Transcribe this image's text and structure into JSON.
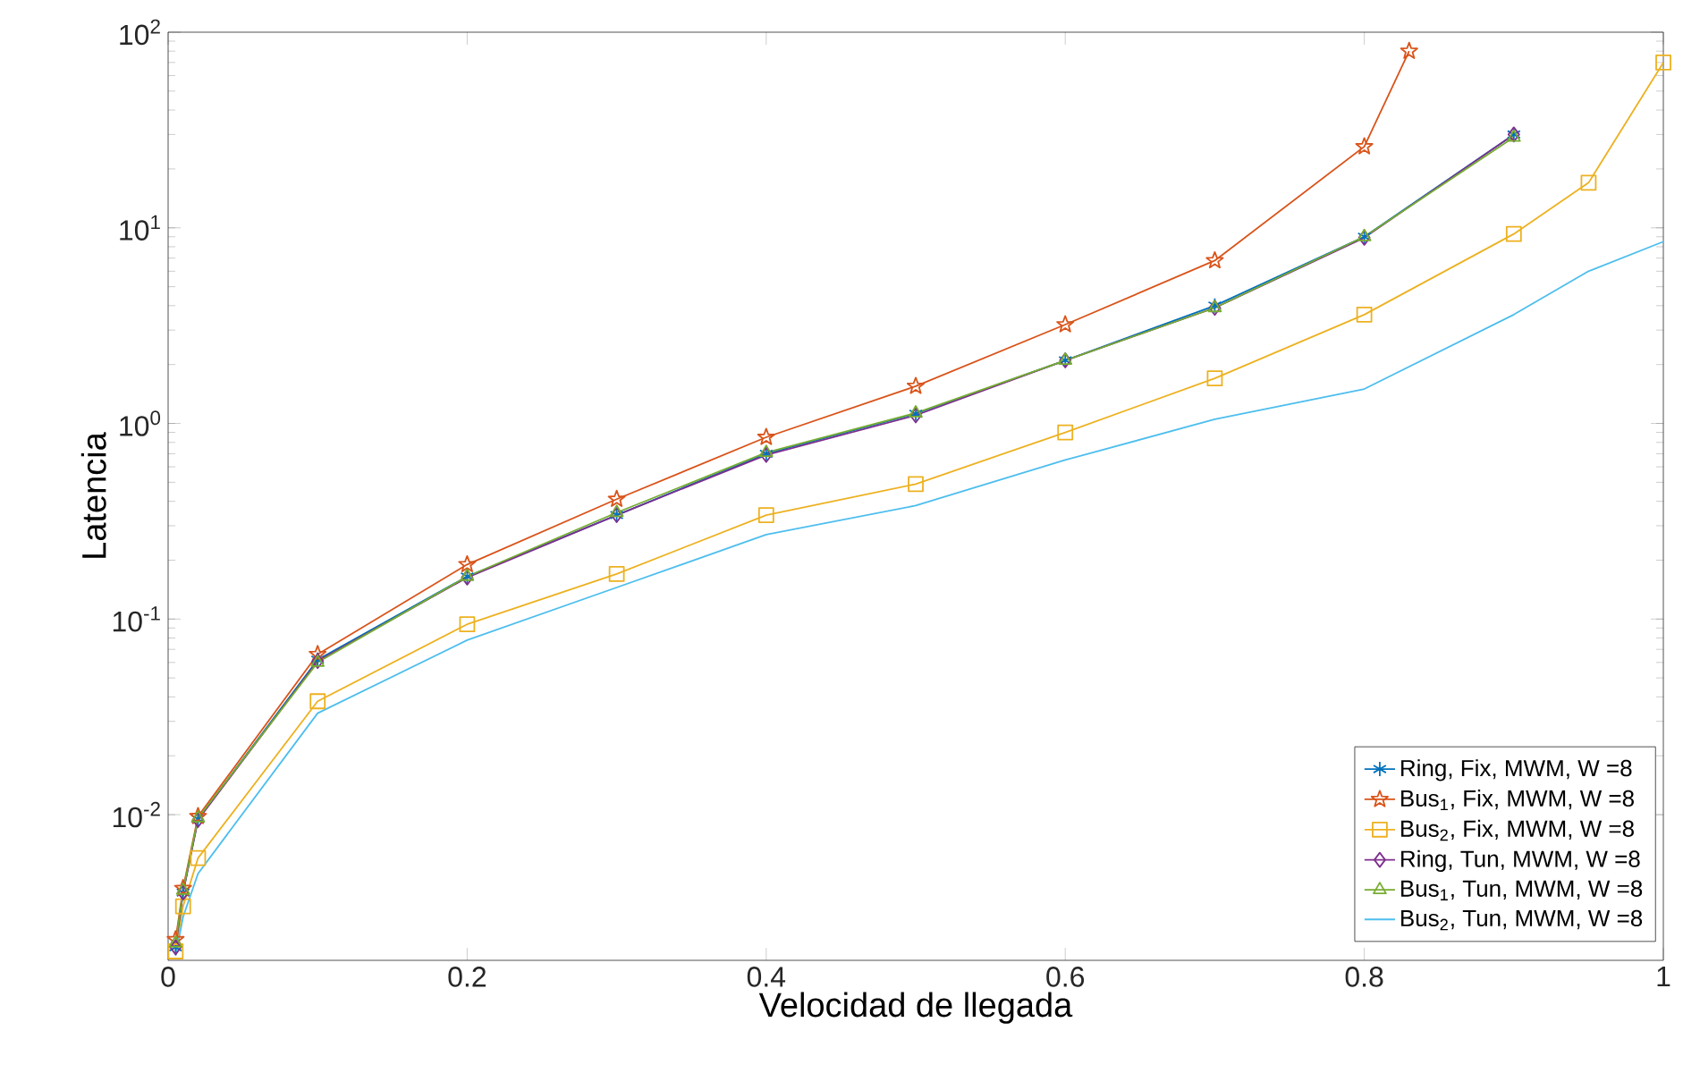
{
  "chart_data": {
    "type": "line",
    "xlabel": "Velocidad de llegada",
    "ylabel": "Latencia",
    "log": "y",
    "xlim": [
      0,
      1
    ],
    "ylim": [
      0.0018,
      100
    ],
    "xticks": [
      0,
      0.2,
      0.4,
      0.6,
      0.8,
      1
    ],
    "yticks": [
      {
        "value": 0.01,
        "label": "10$^{-2}$"
      },
      {
        "value": 0.1,
        "label": "10$^{-1}$"
      },
      {
        "value": 1,
        "label": "10$^{0}$"
      },
      {
        "value": 10,
        "label": "10$^{1}$"
      },
      {
        "value": 100,
        "label": "10$^{2}$"
      }
    ],
    "x": [
      0.005,
      0.01,
      0.02,
      0.1,
      0.2,
      0.3,
      0.4,
      0.5,
      0.6,
      0.7,
      0.8,
      0.9
    ],
    "legend": "bottom right",
    "grid": false,
    "series": [
      {
        "name": "Ring, Fix, MWM, W =8",
        "color": "#0072bd",
        "marker": "cross",
        "values": [
          0.0021,
          0.004,
          0.0095,
          0.062,
          0.165,
          0.34,
          0.7,
          1.12,
          2.1,
          4.0,
          9.0,
          30
        ]
      },
      {
        "name": "Bus$_{1}$, Fix, MWM, W =8",
        "color": "#d95319",
        "marker": "star",
        "x": [
          0.005,
          0.01,
          0.02,
          0.1,
          0.2,
          0.3,
          0.4,
          0.5,
          0.6,
          0.7,
          0.8,
          0.83
        ],
        "values": [
          0.0023,
          0.0042,
          0.0098,
          0.066,
          0.19,
          0.41,
          0.85,
          1.55,
          3.2,
          6.8,
          26,
          80
        ]
      },
      {
        "name": "Bus$_{2}$, Fix, MWM, W =8",
        "color": "#edb120",
        "marker": "square",
        "x": [
          0.005,
          0.01,
          0.02,
          0.1,
          0.2,
          0.3,
          0.4,
          0.5,
          0.6,
          0.7,
          0.8,
          0.9,
          0.95,
          1.0
        ],
        "values": [
          0.002,
          0.0034,
          0.006,
          0.038,
          0.094,
          0.17,
          0.34,
          0.49,
          0.9,
          1.7,
          3.6,
          9.3,
          17,
          70
        ]
      },
      {
        "name": "Ring, Tun, MWM, W =8",
        "color": "#7e2f8e",
        "marker": "diamond",
        "values": [
          0.0021,
          0.004,
          0.0094,
          0.061,
          0.163,
          0.34,
          0.69,
          1.1,
          2.1,
          3.9,
          8.9,
          30
        ]
      },
      {
        "name": "Bus$_{1}$, Tun, MWM, W =8",
        "color": "#77ac30",
        "marker": "triangle",
        "values": [
          0.0022,
          0.0041,
          0.0096,
          0.06,
          0.165,
          0.35,
          0.71,
          1.13,
          2.1,
          3.9,
          9.0,
          29
        ]
      },
      {
        "name": "Bus$_{2}$, Tun, MWM, W =8",
        "color": "#4dbeee",
        "marker": "none",
        "x": [
          0.005,
          0.01,
          0.02,
          0.1,
          0.2,
          0.3,
          0.4,
          0.5,
          0.6,
          0.7,
          0.8,
          0.9,
          0.95,
          1.0
        ],
        "values": [
          0.0019,
          0.003,
          0.005,
          0.033,
          0.078,
          0.145,
          0.27,
          0.38,
          0.65,
          1.05,
          1.5,
          3.6,
          6,
          8.5
        ]
      }
    ]
  }
}
